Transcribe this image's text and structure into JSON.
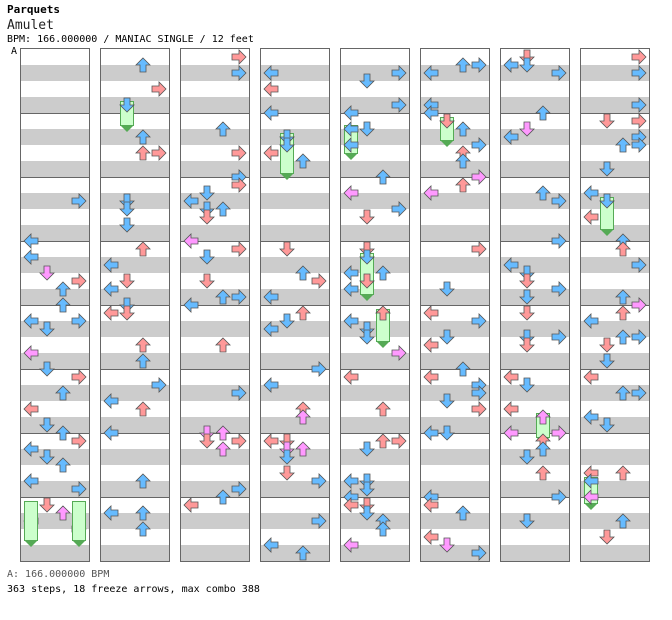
{
  "header": {
    "title": "Parquets",
    "song": "Amulet",
    "info": "BPM: 166.000000 / MANIAC SINGLE / 12 feet",
    "bpm_marker": "A"
  },
  "footer": {
    "bpm_line": "A: 166.000000 BPM",
    "stats": "363 steps, 18 freeze arrows, max combo 388"
  },
  "colors": {
    "quarter": "#ff9999",
    "eighth": "#66bbff",
    "sixteenth": "#ff99ff",
    "freeze": "#99ee99",
    "row_light": "#ffffff",
    "row_dark": "#cccccc"
  },
  "legend": [
    "left-arrow",
    "down-arrow",
    "up-arrow",
    "right-arrow"
  ]
}
